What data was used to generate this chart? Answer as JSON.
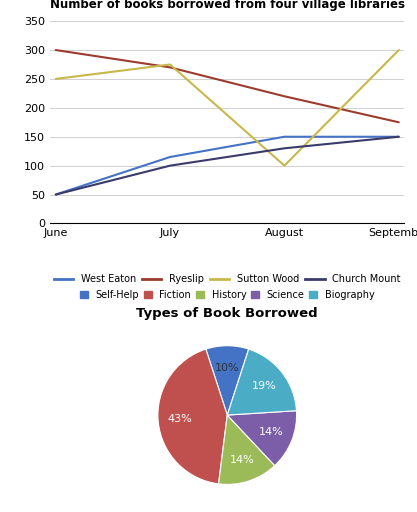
{
  "line_title": "Number of books borrowed from four village libraries",
  "months": [
    "June",
    "July",
    "August",
    "September"
  ],
  "series_order": [
    "West Eaton",
    "Ryeslip",
    "Sutton Wood",
    "Church Mount"
  ],
  "series": {
    "West Eaton": {
      "values": [
        50,
        115,
        150,
        150
      ],
      "color": "#4472C4"
    },
    "Ryeslip": {
      "values": [
        300,
        270,
        220,
        175
      ],
      "color": "#9C3B2E"
    },
    "Sutton Wood": {
      "values": [
        250,
        275,
        100,
        300
      ],
      "color": "#C8B84A"
    },
    "Church Mount": {
      "values": [
        50,
        100,
        130,
        150
      ],
      "color": "#3B3B6B"
    }
  },
  "ylim": [
    0,
    360
  ],
  "yticks": [
    0,
    50,
    100,
    150,
    200,
    250,
    300,
    350
  ],
  "pie_title": "Types of Book Borrowed",
  "pie_labels": [
    "Self-Help",
    "Fiction",
    "History",
    "Science",
    "Biography"
  ],
  "pie_values": [
    10,
    43,
    14,
    14,
    19
  ],
  "pie_colors": [
    "#4472C4",
    "#C0504D",
    "#9BBB59",
    "#7B5EA7",
    "#4BACC6"
  ],
  "pie_startangle": 72,
  "pct_colors": [
    "#333333",
    "white",
    "white",
    "white",
    "white"
  ]
}
